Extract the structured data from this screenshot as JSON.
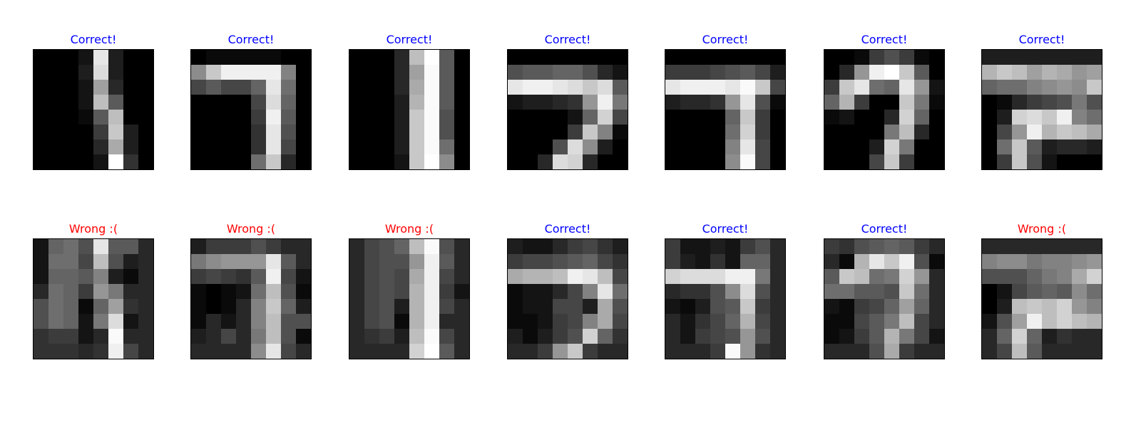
{
  "colors": {
    "correct": "#0000ff",
    "wrong": "#ff0000"
  },
  "panels": [
    {
      "title": "Correct!",
      "status": "correct",
      "pixels": [
        [
          0,
          0,
          0,
          20,
          230,
          30,
          0,
          0
        ],
        [
          0,
          0,
          0,
          30,
          220,
          30,
          0,
          0
        ],
        [
          0,
          0,
          0,
          20,
          160,
          40,
          0,
          0
        ],
        [
          0,
          0,
          0,
          20,
          190,
          90,
          0,
          0
        ],
        [
          0,
          0,
          0,
          10,
          90,
          190,
          0,
          0
        ],
        [
          0,
          0,
          0,
          0,
          60,
          200,
          30,
          0
        ],
        [
          0,
          0,
          0,
          0,
          40,
          170,
          30,
          0
        ],
        [
          0,
          0,
          0,
          0,
          20,
          255,
          50,
          0
        ]
      ]
    },
    {
      "title": "Correct!",
      "status": "correct",
      "pixels": [
        [
          0,
          10,
          10,
          10,
          10,
          10,
          0,
          0
        ],
        [
          140,
          200,
          240,
          240,
          240,
          240,
          130,
          0
        ],
        [
          70,
          90,
          70,
          70,
          100,
          230,
          110,
          0
        ],
        [
          0,
          0,
          0,
          0,
          70,
          220,
          100,
          0
        ],
        [
          0,
          0,
          0,
          0,
          60,
          240,
          90,
          0
        ],
        [
          0,
          0,
          0,
          0,
          50,
          230,
          80,
          0
        ],
        [
          0,
          0,
          0,
          0,
          50,
          230,
          70,
          0
        ],
        [
          0,
          0,
          0,
          0,
          110,
          200,
          40,
          0
        ]
      ]
    },
    {
      "title": "Correct!",
      "status": "correct",
      "pixels": [
        [
          0,
          0,
          0,
          40,
          190,
          255,
          90,
          0
        ],
        [
          0,
          0,
          0,
          40,
          160,
          250,
          90,
          0
        ],
        [
          0,
          0,
          0,
          40,
          170,
          250,
          90,
          0
        ],
        [
          0,
          0,
          0,
          30,
          180,
          250,
          90,
          0
        ],
        [
          0,
          0,
          0,
          30,
          200,
          250,
          80,
          0
        ],
        [
          0,
          0,
          0,
          30,
          200,
          250,
          80,
          0
        ],
        [
          0,
          0,
          0,
          30,
          200,
          250,
          110,
          0
        ],
        [
          0,
          0,
          0,
          20,
          200,
          255,
          140,
          0
        ]
      ]
    },
    {
      "title": "Correct!",
      "status": "correct",
      "pixels": [
        [
          0,
          0,
          0,
          0,
          0,
          0,
          0,
          0
        ],
        [
          80,
          90,
          90,
          100,
          100,
          80,
          40,
          20
        ],
        [
          230,
          240,
          240,
          230,
          220,
          200,
          220,
          90
        ],
        [
          20,
          30,
          30,
          40,
          50,
          150,
          240,
          120
        ],
        [
          0,
          0,
          0,
          0,
          20,
          100,
          210,
          70
        ],
        [
          0,
          0,
          0,
          0,
          60,
          200,
          130,
          10
        ],
        [
          0,
          0,
          0,
          80,
          220,
          140,
          30,
          0
        ],
        [
          0,
          0,
          40,
          220,
          210,
          40,
          0,
          0
        ]
      ]
    },
    {
      "title": "Correct!",
      "status": "correct",
      "pixels": [
        [
          0,
          0,
          0,
          0,
          0,
          0,
          0,
          0
        ],
        [
          60,
          60,
          60,
          70,
          80,
          90,
          70,
          30
        ],
        [
          230,
          240,
          240,
          240,
          230,
          250,
          200,
          70
        ],
        [
          30,
          40,
          40,
          50,
          150,
          230,
          80,
          10
        ],
        [
          0,
          0,
          0,
          0,
          100,
          200,
          60,
          0
        ],
        [
          0,
          0,
          0,
          0,
          110,
          210,
          60,
          0
        ],
        [
          0,
          0,
          0,
          0,
          130,
          230,
          70,
          0
        ],
        [
          0,
          0,
          0,
          0,
          140,
          250,
          70,
          0
        ]
      ]
    },
    {
      "title": "Correct!",
      "status": "correct",
      "pixels": [
        [
          0,
          0,
          10,
          60,
          80,
          60,
          10,
          0
        ],
        [
          0,
          40,
          150,
          240,
          255,
          200,
          90,
          0
        ],
        [
          60,
          200,
          230,
          110,
          100,
          230,
          150,
          20
        ],
        [
          100,
          180,
          60,
          0,
          0,
          200,
          120,
          10
        ],
        [
          10,
          20,
          0,
          0,
          40,
          210,
          100,
          0
        ],
        [
          0,
          0,
          0,
          0,
          120,
          190,
          40,
          0
        ],
        [
          0,
          0,
          0,
          30,
          210,
          120,
          0,
          0
        ],
        [
          0,
          0,
          0,
          70,
          200,
          60,
          0,
          0
        ]
      ]
    },
    {
      "title": "Correct!",
      "status": "correct",
      "pixels": [
        [
          30,
          30,
          30,
          30,
          30,
          30,
          30,
          30
        ],
        [
          180,
          200,
          190,
          160,
          180,
          170,
          150,
          160
        ],
        [
          100,
          110,
          110,
          130,
          140,
          150,
          140,
          200
        ],
        [
          0,
          10,
          40,
          60,
          70,
          80,
          120,
          80
        ],
        [
          0,
          30,
          210,
          220,
          200,
          240,
          130,
          110
        ],
        [
          0,
          70,
          150,
          240,
          180,
          200,
          190,
          170
        ],
        [
          0,
          110,
          200,
          90,
          30,
          40,
          40,
          30
        ],
        [
          0,
          60,
          200,
          80,
          20,
          0,
          0,
          0
        ]
      ]
    },
    {
      "title": "Wrong :(",
      "status": "wrong",
      "pixels": [
        [
          20,
          100,
          110,
          80,
          230,
          90,
          90,
          40
        ],
        [
          20,
          110,
          110,
          70,
          190,
          80,
          30,
          40
        ],
        [
          20,
          100,
          100,
          90,
          130,
          30,
          10,
          40
        ],
        [
          40,
          110,
          100,
          60,
          150,
          120,
          40,
          40
        ],
        [
          80,
          110,
          100,
          10,
          100,
          160,
          50,
          40
        ],
        [
          80,
          110,
          100,
          20,
          120,
          220,
          20,
          40
        ],
        [
          50,
          60,
          60,
          20,
          40,
          250,
          40,
          40
        ],
        [
          50,
          50,
          50,
          40,
          50,
          240,
          70,
          40
        ]
      ]
    },
    {
      "title": "Wrong :(",
      "status": "wrong",
      "pixels": [
        [
          30,
          60,
          60,
          60,
          80,
          60,
          40,
          40
        ],
        [
          120,
          140,
          150,
          150,
          150,
          230,
          90,
          40
        ],
        [
          60,
          70,
          60,
          50,
          90,
          240,
          70,
          20
        ],
        [
          10,
          0,
          10,
          20,
          110,
          190,
          80,
          10
        ],
        [
          10,
          0,
          10,
          40,
          130,
          200,
          100,
          30
        ],
        [
          10,
          40,
          20,
          40,
          130,
          190,
          80,
          80
        ],
        [
          30,
          40,
          70,
          40,
          120,
          190,
          80,
          10
        ],
        [
          40,
          40,
          40,
          40,
          140,
          230,
          70,
          40
        ]
      ]
    },
    {
      "title": "Wrong :(",
      "status": "wrong",
      "pixels": [
        [
          40,
          70,
          80,
          100,
          190,
          250,
          80,
          40
        ],
        [
          40,
          70,
          80,
          80,
          150,
          240,
          90,
          40
        ],
        [
          40,
          70,
          80,
          70,
          170,
          240,
          70,
          40
        ],
        [
          40,
          70,
          80,
          70,
          180,
          240,
          60,
          20
        ],
        [
          40,
          70,
          80,
          30,
          180,
          240,
          70,
          40
        ],
        [
          40,
          70,
          80,
          10,
          180,
          240,
          40,
          40
        ],
        [
          40,
          50,
          60,
          30,
          190,
          250,
          70,
          40
        ],
        [
          40,
          40,
          40,
          40,
          210,
          255,
          90,
          40
        ]
      ]
    },
    {
      "title": "Correct!",
      "status": "correct",
      "pixels": [
        [
          30,
          20,
          20,
          40,
          60,
          70,
          50,
          30
        ],
        [
          60,
          70,
          70,
          80,
          90,
          100,
          70,
          50
        ],
        [
          170,
          180,
          180,
          190,
          240,
          230,
          190,
          70
        ],
        [
          10,
          20,
          20,
          40,
          70,
          130,
          230,
          110
        ],
        [
          10,
          20,
          20,
          70,
          70,
          30,
          170,
          80
        ],
        [
          10,
          10,
          20,
          60,
          70,
          130,
          170,
          70
        ],
        [
          30,
          10,
          30,
          60,
          80,
          210,
          100,
          50
        ],
        [
          40,
          40,
          60,
          150,
          200,
          60,
          40,
          40
        ]
      ]
    },
    {
      "title": "Correct!",
      "status": "correct",
      "pixels": [
        [
          60,
          20,
          20,
          30,
          20,
          60,
          80,
          40
        ],
        [
          60,
          30,
          20,
          50,
          20,
          100,
          100,
          40
        ],
        [
          210,
          220,
          220,
          220,
          240,
          240,
          120,
          40
        ],
        [
          40,
          50,
          50,
          80,
          140,
          220,
          80,
          40
        ],
        [
          20,
          10,
          30,
          80,
          90,
          200,
          60,
          40
        ],
        [
          40,
          20,
          50,
          70,
          100,
          180,
          70,
          40
        ],
        [
          40,
          20,
          60,
          70,
          80,
          150,
          80,
          40
        ],
        [
          40,
          40,
          40,
          60,
          250,
          150,
          50,
          40
        ]
      ]
    },
    {
      "title": "Correct!",
      "status": "correct",
      "pixels": [
        [
          60,
          50,
          80,
          90,
          100,
          90,
          60,
          40
        ],
        [
          40,
          10,
          180,
          230,
          200,
          240,
          80,
          10
        ],
        [
          90,
          200,
          190,
          110,
          120,
          210,
          150,
          40
        ],
        [
          110,
          110,
          90,
          90,
          80,
          200,
          110,
          40
        ],
        [
          20,
          10,
          60,
          70,
          100,
          160,
          100,
          40
        ],
        [
          10,
          10,
          70,
          90,
          120,
          190,
          70,
          40
        ],
        [
          10,
          20,
          60,
          90,
          180,
          120,
          70,
          20
        ],
        [
          40,
          40,
          40,
          80,
          170,
          60,
          40,
          40
        ]
      ]
    },
    {
      "title": "Wrong :(",
      "status": "wrong",
      "pixels": [
        [
          40,
          40,
          40,
          40,
          40,
          40,
          40,
          40
        ],
        [
          130,
          140,
          140,
          120,
          130,
          130,
          140,
          150
        ],
        [
          80,
          80,
          80,
          100,
          120,
          130,
          170,
          210
        ],
        [
          0,
          20,
          70,
          90,
          100,
          90,
          140,
          110
        ],
        [
          0,
          30,
          190,
          200,
          190,
          210,
          150,
          130
        ],
        [
          20,
          80,
          160,
          240,
          190,
          210,
          190,
          180
        ],
        [
          40,
          100,
          210,
          100,
          30,
          50,
          40,
          40
        ],
        [
          40,
          70,
          190,
          90,
          40,
          40,
          40,
          40
        ]
      ]
    }
  ]
}
